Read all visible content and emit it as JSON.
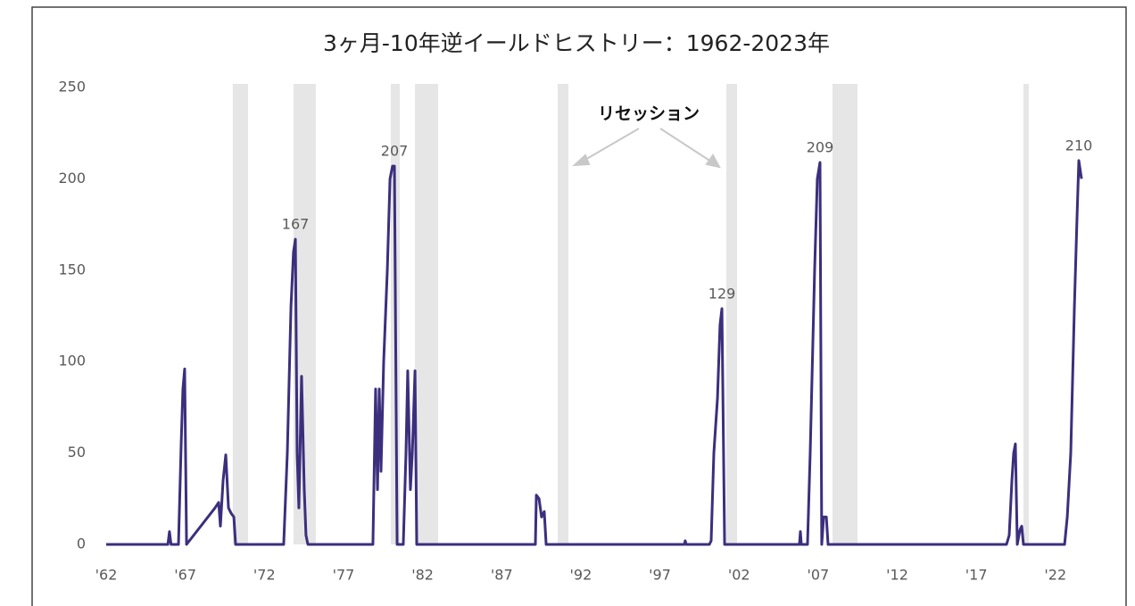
{
  "chart_data": {
    "type": "line",
    "title": "3ヶ月-10年逆イールドヒストリー：1962-2023年",
    "xlim": [
      1962,
      2023.7
    ],
    "ylim": [
      0,
      250
    ],
    "yticks": [
      0,
      50,
      100,
      150,
      200,
      250
    ],
    "xticks": [
      {
        "value": 1962,
        "label": "'62"
      },
      {
        "value": 1967,
        "label": "'67"
      },
      {
        "value": 1972,
        "label": "'72"
      },
      {
        "value": 1977,
        "label": "'77"
      },
      {
        "value": 1982,
        "label": "'82"
      },
      {
        "value": 1987,
        "label": "'87"
      },
      {
        "value": 1992,
        "label": "'92"
      },
      {
        "value": 1997,
        "label": "'97"
      },
      {
        "value": 2002,
        "label": "'02"
      },
      {
        "value": 2007,
        "label": "'07"
      },
      {
        "value": 2012,
        "label": "'12"
      },
      {
        "value": 2017,
        "label": "'17"
      },
      {
        "value": 2022,
        "label": "'22"
      }
    ],
    "recessions": [
      [
        1970.0,
        1970.97
      ],
      [
        1973.84,
        1975.25
      ],
      [
        1979.99,
        1980.56
      ],
      [
        1981.52,
        1982.98
      ],
      [
        1990.54,
        1991.22
      ],
      [
        2001.2,
        2001.88
      ],
      [
        2007.91,
        2009.49
      ],
      [
        2019.98,
        2020.32
      ]
    ],
    "recession_label": "リセッション",
    "series": [
      {
        "color": "#3b2f7d",
        "x": [
          1962,
          1965.9,
          1966.0,
          1966.1,
          1966.57,
          1966.74,
          1966.85,
          1966.96,
          1967.08,
          1968.88,
          1969.11,
          1969.22,
          1969.39,
          1969.56,
          1969.73,
          1969.9,
          1970.07,
          1970.18,
          1973.22,
          1973.45,
          1973.68,
          1973.84,
          1973.96,
          1974.07,
          1974.18,
          1974.35,
          1974.52,
          1974.63,
          1974.75,
          1978.86,
          1979.03,
          1979.15,
          1979.26,
          1979.37,
          1979.54,
          1979.77,
          1979.94,
          1980.1,
          1980.22,
          1980.39,
          1980.78,
          1980.95,
          1981.06,
          1981.23,
          1981.35,
          1981.52,
          1981.63,
          1989.13,
          1989.19,
          1989.36,
          1989.52,
          1989.69,
          1989.81,
          1998.55,
          1998.6,
          1998.66,
          2000.13,
          2000.24,
          2000.41,
          2000.64,
          2000.8,
          2000.92,
          2001.09,
          2005.82,
          2005.88,
          2005.94,
          2006.33,
          2006.5,
          2006.78,
          2006.95,
          2007.12,
          2007.23,
          2007.35,
          2007.52,
          2007.63,
          2018.91,
          2019.08,
          2019.25,
          2019.36,
          2019.47,
          2019.59,
          2019.76,
          2019.87,
          2019.98,
          2022.58,
          2022.75,
          2022.97,
          2023.2,
          2023.37,
          2023.48,
          2023.65
        ],
        "values": [
          0,
          0,
          7,
          0,
          0,
          55,
          85,
          96,
          0,
          20,
          23,
          10,
          35,
          49,
          20,
          17,
          15,
          0,
          0,
          50,
          130,
          160,
          167,
          50,
          20,
          92,
          30,
          5,
          0,
          0,
          85,
          30,
          85,
          40,
          100,
          150,
          200,
          207,
          207,
          0,
          0,
          50,
          95,
          30,
          50,
          95,
          0,
          0,
          27,
          25,
          15,
          18,
          0,
          0,
          2,
          0,
          0,
          2,
          50,
          80,
          120,
          129,
          0,
          0,
          7,
          0,
          0,
          50,
          150,
          200,
          209,
          0,
          15,
          15,
          0,
          0,
          5,
          35,
          50,
          55,
          0,
          8,
          10,
          0,
          0,
          15,
          50,
          130,
          180,
          210,
          200
        ]
      }
    ],
    "peak_labels": [
      {
        "label": "167",
        "x": 1973.96,
        "y": 167
      },
      {
        "label": "207",
        "x": 1980.22,
        "y": 207
      },
      {
        "label": "129",
        "x": 2000.92,
        "y": 129
      },
      {
        "label": "209",
        "x": 2007.12,
        "y": 209
      },
      {
        "label": "210",
        "x": 2023.48,
        "y": 210
      }
    ]
  }
}
